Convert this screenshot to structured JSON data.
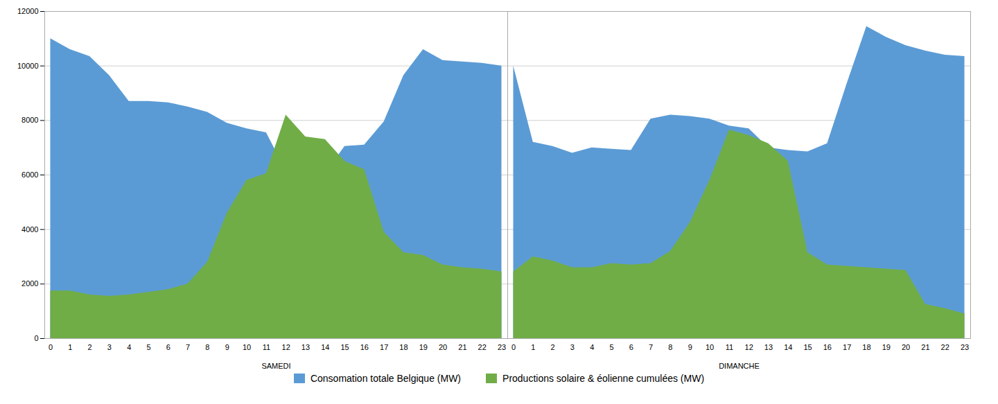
{
  "chart_data": [
    {
      "type": "area",
      "xlabel": "SAMEDI",
      "x": [
        0,
        1,
        2,
        3,
        4,
        5,
        6,
        7,
        8,
        9,
        10,
        11,
        12,
        13,
        14,
        15,
        16,
        17,
        18,
        19,
        20,
        21,
        22,
        23
      ],
      "xlim": [
        -0.3,
        23.3
      ],
      "xticks": [
        0,
        1,
        2,
        3,
        4,
        5,
        6,
        7,
        8,
        9,
        10,
        11,
        12,
        13,
        14,
        15,
        16,
        17,
        18,
        19,
        20,
        21,
        22,
        23
      ],
      "ylim": [
        0,
        12000
      ],
      "yticks": [
        0,
        2000,
        4000,
        6000,
        8000,
        10000,
        12000
      ],
      "grid": true,
      "legend": "bottom",
      "series": [
        {
          "name": "Consomation totale Belgique (MW)",
          "color": "#5B9BD5",
          "values": [
            11000,
            10600,
            10350,
            9650,
            8700,
            8700,
            8650,
            8500,
            8300,
            7900,
            7700,
            7550,
            6150,
            5950,
            6050,
            7050,
            7100,
            7950,
            9650,
            10600,
            10200,
            10150,
            10100,
            10000
          ]
        },
        {
          "name": "Productions solaire & éolienne cumulées (MW)",
          "color": "#70AD47",
          "values": [
            1750,
            1750,
            1600,
            1550,
            1600,
            1700,
            1800,
            2000,
            2800,
            4600,
            5800,
            6050,
            8200,
            7400,
            7300,
            6500,
            6200,
            3900,
            3150,
            3050,
            2700,
            2600,
            2550,
            2450
          ]
        }
      ]
    },
    {
      "type": "area",
      "xlabel": "DIMANCHE",
      "x": [
        0,
        1,
        2,
        3,
        4,
        5,
        6,
        7,
        8,
        9,
        10,
        11,
        12,
        13,
        14,
        15,
        16,
        17,
        18,
        19,
        20,
        21,
        22,
        23
      ],
      "xlim": [
        -0.3,
        23.3
      ],
      "xticks": [
        0,
        1,
        2,
        3,
        4,
        5,
        6,
        7,
        8,
        9,
        10,
        11,
        12,
        13,
        14,
        15,
        16,
        17,
        18,
        19,
        20,
        21,
        22,
        23
      ],
      "ylim": [
        0,
        12000
      ],
      "yticks": [
        0,
        2000,
        4000,
        6000,
        8000,
        10000,
        12000
      ],
      "grid": true,
      "tick_labels": "x",
      "series": [
        {
          "name": "Consomation totale Belgique (MW)",
          "color": "#5B9BD5",
          "values": [
            10000,
            7200,
            7050,
            6800,
            7000,
            6950,
            6900,
            8050,
            8200,
            8150,
            8050,
            7800,
            7700,
            7000,
            6900,
            6850,
            7150,
            9350,
            11450,
            11050,
            10750,
            10550,
            10400,
            10350
          ]
        },
        {
          "name": "Productions solaire & éolienne cumulées (MW)",
          "color": "#70AD47",
          "values": [
            2450,
            3000,
            2850,
            2600,
            2600,
            2750,
            2700,
            2750,
            3200,
            4250,
            5800,
            7650,
            7450,
            7150,
            6500,
            3150,
            2700,
            2650,
            2600,
            2550,
            2500,
            1250,
            1100,
            900
          ]
        }
      ]
    }
  ]
}
